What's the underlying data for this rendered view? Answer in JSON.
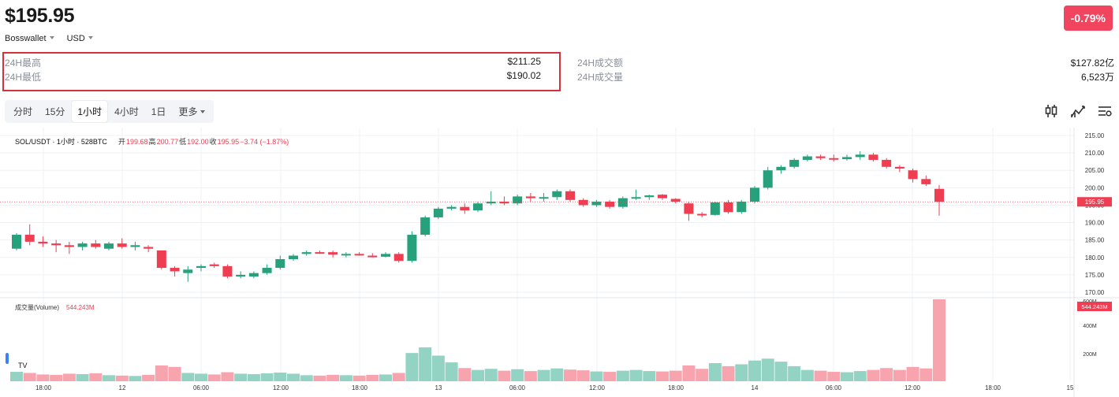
{
  "header": {
    "price": "$195.95",
    "change": "-0.79%",
    "exchange": "Bosswallet",
    "currency": "USD"
  },
  "stats": {
    "high_label": "24H最高",
    "high_value": "$211.25",
    "low_label": "24H最低",
    "low_value": "$190.02",
    "turnover_label": "24H成交额",
    "turnover_value": "$127.82亿",
    "volume_label": "24H成交量",
    "volume_value": "6,523万"
  },
  "timeframes": [
    {
      "label": "分时"
    },
    {
      "label": "15分"
    },
    {
      "label": "1小时",
      "active": true
    },
    {
      "label": "4小时"
    },
    {
      "label": "1日"
    },
    {
      "label": "更多"
    }
  ],
  "tools": [
    "candlestick-icon",
    "indicator-icon",
    "settings-icon"
  ],
  "colors": {
    "up": "#26a17b",
    "down": "#ef3d52",
    "vol_up": "#93d3c3",
    "vol_down": "#f7a4ae",
    "grid": "#eef0f3"
  },
  "chart_data": {
    "type": "candlestick",
    "symbol_label": "SOL/USDT · 1小时 · 528BTC",
    "ohlc_legend": {
      "o_label": "开",
      "o": "199.68",
      "h_label": "高",
      "h": "200.77",
      "l_label": "低",
      "l": "192.00",
      "c_label": "收",
      "c": "195.95",
      "chg": "−3.74 (−1.87%)"
    },
    "price_axis": {
      "ticks": [
        "215.00",
        "210.00",
        "205.00",
        "200.00",
        "195.00",
        "190.00",
        "185.00",
        "180.00",
        "175.00",
        "170.00"
      ],
      "min": 170,
      "max": 215
    },
    "last_price_label": "195.95",
    "last_price": 195.95,
    "volume_legend": {
      "label": "成交量(Volume)",
      "value": "544.243M"
    },
    "volume_axis": {
      "ticks": [
        "600M",
        "400M",
        "200M"
      ],
      "min": 0,
      "max": 600
    },
    "volume_last_label": "544.243M",
    "time_ticks": [
      "18:00",
      "12",
      "06:00",
      "12:00",
      "18:00",
      "13",
      "06:00",
      "12:00",
      "18:00",
      "14",
      "06:00",
      "12:00",
      "18:00",
      "15"
    ],
    "candles": [
      {
        "o": 182.5,
        "h": 187.0,
        "l": 182.0,
        "c": 186.5,
        "v": 25
      },
      {
        "o": 186.5,
        "h": 189.5,
        "l": 183.5,
        "c": 184.5,
        "v": 22
      },
      {
        "o": 184.5,
        "h": 186.0,
        "l": 183.0,
        "c": 184.0,
        "v": 18
      },
      {
        "o": 184.0,
        "h": 185.0,
        "l": 181.5,
        "c": 183.5,
        "v": 17
      },
      {
        "o": 183.5,
        "h": 184.5,
        "l": 181.0,
        "c": 183.0,
        "v": 20
      },
      {
        "o": 183.0,
        "h": 184.5,
        "l": 182.0,
        "c": 184.0,
        "v": 19
      },
      {
        "o": 184.0,
        "h": 185.0,
        "l": 182.5,
        "c": 183.0,
        "v": 21
      },
      {
        "o": 182.5,
        "h": 184.5,
        "l": 182.0,
        "c": 184.0,
        "v": 16
      },
      {
        "o": 184.0,
        "h": 185.5,
        "l": 182.5,
        "c": 183.0,
        "v": 15
      },
      {
        "o": 183.0,
        "h": 184.5,
        "l": 182.0,
        "c": 183.5,
        "v": 14
      },
      {
        "o": 183.0,
        "h": 183.5,
        "l": 181.5,
        "c": 182.5,
        "v": 17
      },
      {
        "o": 182.0,
        "h": 182.0,
        "l": 176.5,
        "c": 177.0,
        "v": 42
      },
      {
        "o": 177.0,
        "h": 177.5,
        "l": 174.5,
        "c": 176.0,
        "v": 38
      },
      {
        "o": 175.5,
        "h": 177.5,
        "l": 173.0,
        "c": 176.5,
        "v": 22
      },
      {
        "o": 177.0,
        "h": 178.0,
        "l": 176.0,
        "c": 177.5,
        "v": 20
      },
      {
        "o": 178.0,
        "h": 178.5,
        "l": 177.0,
        "c": 177.5,
        "v": 18
      },
      {
        "o": 177.5,
        "h": 178.0,
        "l": 174.0,
        "c": 174.5,
        "v": 24
      },
      {
        "o": 174.5,
        "h": 176.0,
        "l": 174.0,
        "c": 175.0,
        "v": 20
      },
      {
        "o": 174.5,
        "h": 176.0,
        "l": 174.0,
        "c": 175.5,
        "v": 19
      },
      {
        "o": 175.5,
        "h": 178.0,
        "l": 175.0,
        "c": 177.0,
        "v": 21
      },
      {
        "o": 177.0,
        "h": 180.5,
        "l": 176.5,
        "c": 179.5,
        "v": 23
      },
      {
        "o": 179.5,
        "h": 181.0,
        "l": 179.0,
        "c": 180.5,
        "v": 20
      },
      {
        "o": 181.0,
        "h": 182.0,
        "l": 180.5,
        "c": 181.5,
        "v": 16
      },
      {
        "o": 181.5,
        "h": 182.0,
        "l": 181.0,
        "c": 181.3,
        "v": 15
      },
      {
        "o": 181.5,
        "h": 182.0,
        "l": 180.0,
        "c": 180.8,
        "v": 17
      },
      {
        "o": 180.8,
        "h": 181.5,
        "l": 180.0,
        "c": 181.0,
        "v": 16
      },
      {
        "o": 181.0,
        "h": 181.5,
        "l": 180.5,
        "c": 180.6,
        "v": 15
      },
      {
        "o": 180.5,
        "h": 181.2,
        "l": 180.0,
        "c": 180.2,
        "v": 17
      },
      {
        "o": 180.2,
        "h": 181.5,
        "l": 180.0,
        "c": 181.0,
        "v": 18
      },
      {
        "o": 181.0,
        "h": 181.5,
        "l": 178.5,
        "c": 179.0,
        "v": 22
      },
      {
        "o": 179.0,
        "h": 187.5,
        "l": 178.5,
        "c": 186.5,
        "v": 75
      },
      {
        "o": 186.5,
        "h": 192.0,
        "l": 186.0,
        "c": 191.5,
        "v": 90
      },
      {
        "o": 191.5,
        "h": 194.5,
        "l": 191.0,
        "c": 194.0,
        "v": 68
      },
      {
        "o": 194.0,
        "h": 195.0,
        "l": 193.5,
        "c": 194.5,
        "v": 50
      },
      {
        "o": 194.5,
        "h": 195.5,
        "l": 192.5,
        "c": 193.5,
        "v": 35
      },
      {
        "o": 193.5,
        "h": 196.0,
        "l": 193.0,
        "c": 195.5,
        "v": 30
      },
      {
        "o": 195.5,
        "h": 199.0,
        "l": 195.0,
        "c": 196.0,
        "v": 33
      },
      {
        "o": 196.0,
        "h": 197.5,
        "l": 195.0,
        "c": 195.5,
        "v": 28
      },
      {
        "o": 195.5,
        "h": 198.0,
        "l": 195.0,
        "c": 197.5,
        "v": 32
      },
      {
        "o": 197.5,
        "h": 198.5,
        "l": 196.0,
        "c": 197.0,
        "v": 27
      },
      {
        "o": 197.0,
        "h": 198.5,
        "l": 196.0,
        "c": 197.3,
        "v": 30
      },
      {
        "o": 197.3,
        "h": 199.5,
        "l": 196.5,
        "c": 199.0,
        "v": 34
      },
      {
        "o": 199.0,
        "h": 199.5,
        "l": 196.0,
        "c": 196.5,
        "v": 31
      },
      {
        "o": 196.5,
        "h": 197.0,
        "l": 194.5,
        "c": 195.0,
        "v": 29
      },
      {
        "o": 195.0,
        "h": 196.5,
        "l": 194.5,
        "c": 196.0,
        "v": 26
      },
      {
        "o": 196.0,
        "h": 196.5,
        "l": 194.0,
        "c": 194.5,
        "v": 25
      },
      {
        "o": 194.5,
        "h": 197.5,
        "l": 194.0,
        "c": 197.0,
        "v": 28
      },
      {
        "o": 197.0,
        "h": 199.5,
        "l": 196.5,
        "c": 197.3,
        "v": 30
      },
      {
        "o": 197.3,
        "h": 198.0,
        "l": 196.5,
        "c": 197.8,
        "v": 27
      },
      {
        "o": 198.0,
        "h": 198.2,
        "l": 196.5,
        "c": 197.0,
        "v": 26
      },
      {
        "o": 196.8,
        "h": 197.0,
        "l": 195.5,
        "c": 196.0,
        "v": 28
      },
      {
        "o": 195.5,
        "h": 196.0,
        "l": 190.5,
        "c": 192.5,
        "v": 42
      },
      {
        "o": 192.5,
        "h": 193.0,
        "l": 191.5,
        "c": 192.3,
        "v": 33
      },
      {
        "o": 192.2,
        "h": 196.0,
        "l": 192.0,
        "c": 195.8,
        "v": 48
      },
      {
        "o": 195.8,
        "h": 196.5,
        "l": 192.5,
        "c": 193.0,
        "v": 40
      },
      {
        "o": 193.0,
        "h": 196.5,
        "l": 192.5,
        "c": 196.0,
        "v": 45
      },
      {
        "o": 196.0,
        "h": 200.5,
        "l": 195.5,
        "c": 200.0,
        "v": 55
      },
      {
        "o": 200.0,
        "h": 206.0,
        "l": 199.5,
        "c": 205.0,
        "v": 60
      },
      {
        "o": 205.0,
        "h": 206.5,
        "l": 204.0,
        "c": 206.0,
        "v": 52
      },
      {
        "o": 206.0,
        "h": 208.5,
        "l": 205.5,
        "c": 208.0,
        "v": 40
      },
      {
        "o": 208.0,
        "h": 209.5,
        "l": 207.5,
        "c": 209.0,
        "v": 30
      },
      {
        "o": 209.0,
        "h": 209.5,
        "l": 208.0,
        "c": 208.5,
        "v": 28
      },
      {
        "o": 208.5,
        "h": 209.5,
        "l": 207.5,
        "c": 208.2,
        "v": 25
      },
      {
        "o": 208.2,
        "h": 209.5,
        "l": 207.8,
        "c": 208.8,
        "v": 24
      },
      {
        "o": 208.8,
        "h": 210.5,
        "l": 208.0,
        "c": 209.5,
        "v": 27
      },
      {
        "o": 209.5,
        "h": 210.0,
        "l": 207.5,
        "c": 208.0,
        "v": 30
      },
      {
        "o": 208.0,
        "h": 208.5,
        "l": 205.5,
        "c": 206.0,
        "v": 35
      },
      {
        "o": 206.0,
        "h": 206.5,
        "l": 204.5,
        "c": 205.5,
        "v": 30
      },
      {
        "o": 205.0,
        "h": 205.5,
        "l": 201.5,
        "c": 202.5,
        "v": 38
      },
      {
        "o": 202.5,
        "h": 203.5,
        "l": 200.5,
        "c": 201.0,
        "v": 34
      },
      {
        "o": 199.68,
        "h": 200.77,
        "l": 192.0,
        "c": 195.95,
        "v": 544.243
      }
    ]
  }
}
